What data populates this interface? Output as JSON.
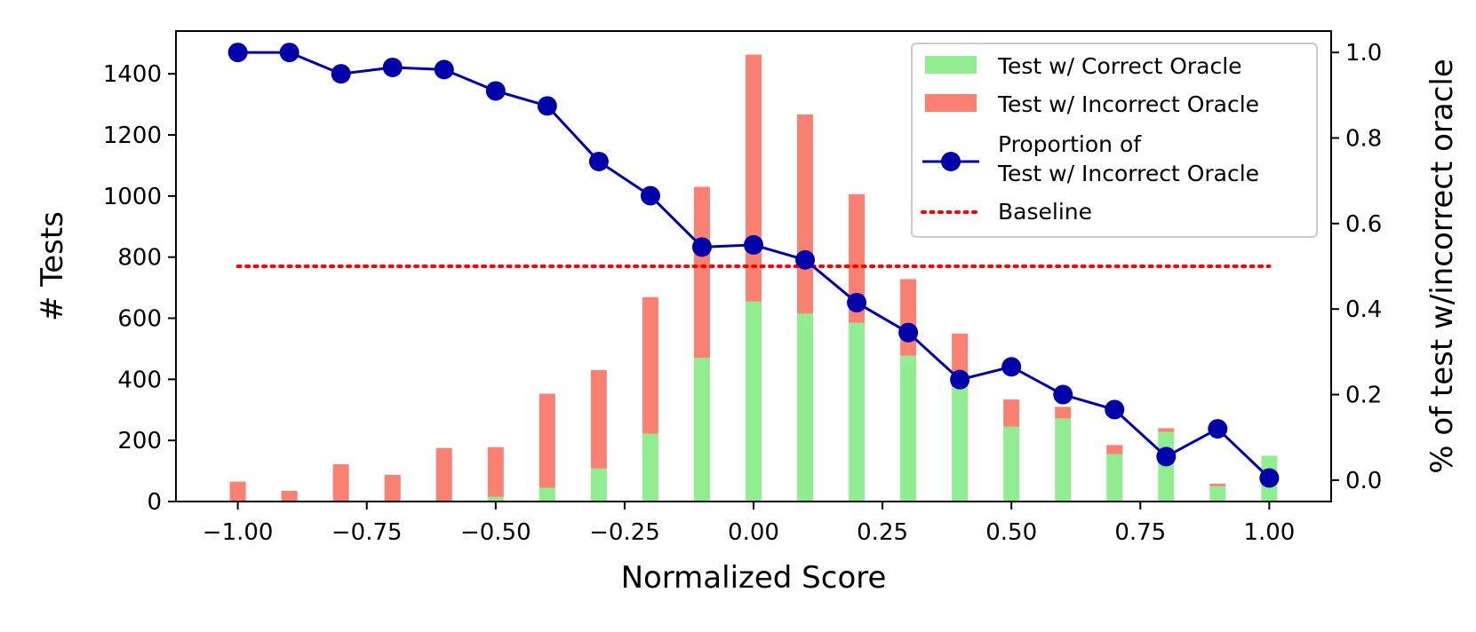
{
  "chart_data": {
    "type": "bar",
    "stacked": true,
    "title": "",
    "xlabel": "Normalized Score",
    "ylabel": "# Tests",
    "y2label": "% of test w/incorrect oracle",
    "xlim": [
      -1.12,
      1.12
    ],
    "ylim": [
      0,
      1540
    ],
    "y2lim": [
      -0.05,
      1.05
    ],
    "x": [
      -1.0,
      -0.9,
      -0.8,
      -0.7,
      -0.6,
      -0.5,
      -0.4,
      -0.3,
      -0.2,
      -0.1,
      0.0,
      0.1,
      0.2,
      0.3,
      0.4,
      0.5,
      0.6,
      0.7,
      0.8,
      0.9,
      1.0
    ],
    "x_tick_values": [
      -1.0,
      -0.75,
      -0.5,
      -0.25,
      0.0,
      0.25,
      0.5,
      0.75,
      1.0
    ],
    "x_tick_labels": [
      "−1.00",
      "−0.75",
      "−0.50",
      "−0.25",
      "0.00",
      "0.25",
      "0.50",
      "0.75",
      "1.00"
    ],
    "y_ticks": [
      0,
      200,
      400,
      600,
      800,
      1000,
      1200,
      1400
    ],
    "y_tick_labels": [
      "0",
      "200",
      "400",
      "600",
      "800",
      "1000",
      "1200",
      "1400"
    ],
    "y2_ticks": [
      0.0,
      0.2,
      0.4,
      0.6,
      0.8,
      1.0
    ],
    "y2_tick_labels": [
      "0.0",
      "0.2",
      "0.4",
      "0.6",
      "0.8",
      "1.0"
    ],
    "series": [
      {
        "name": "Test w/ Correct Oracle",
        "kind": "bar",
        "color": "#90ee90",
        "values": [
          0,
          0,
          0,
          0,
          0,
          15,
          45,
          108,
          222,
          470,
          655,
          615,
          585,
          477,
          375,
          245,
          272,
          155,
          228,
          50,
          150
        ]
      },
      {
        "name": "Test w/ Incorrect Oracle",
        "kind": "bar",
        "color": "#fa8072",
        "values": [
          65,
          35,
          122,
          87,
          175,
          163,
          308,
          322,
          447,
          560,
          808,
          652,
          421,
          251,
          175,
          89,
          38,
          30,
          12,
          8,
          0
        ]
      },
      {
        "name": "Proportion of\nTest w/ Incorrect Oracle",
        "kind": "line",
        "axis": "right",
        "color": "#0000aa",
        "values": [
          1.0,
          1.0,
          0.95,
          0.965,
          0.96,
          0.91,
          0.875,
          0.745,
          0.665,
          0.545,
          0.55,
          0.515,
          0.415,
          0.345,
          0.235,
          0.265,
          0.2,
          0.165,
          0.055,
          0.12,
          0.005
        ]
      },
      {
        "name": "Baseline",
        "kind": "hline",
        "axis": "right",
        "color": "#ff0000",
        "value": 0.5,
        "x_range": [
          -1.0,
          1.0
        ]
      }
    ],
    "legend": {
      "position": "top-right",
      "entries": [
        "Test w/ Correct Oracle",
        "Test w/ Incorrect Oracle",
        "Proportion of",
        "Test w/ Incorrect Oracle",
        "Baseline"
      ]
    }
  }
}
